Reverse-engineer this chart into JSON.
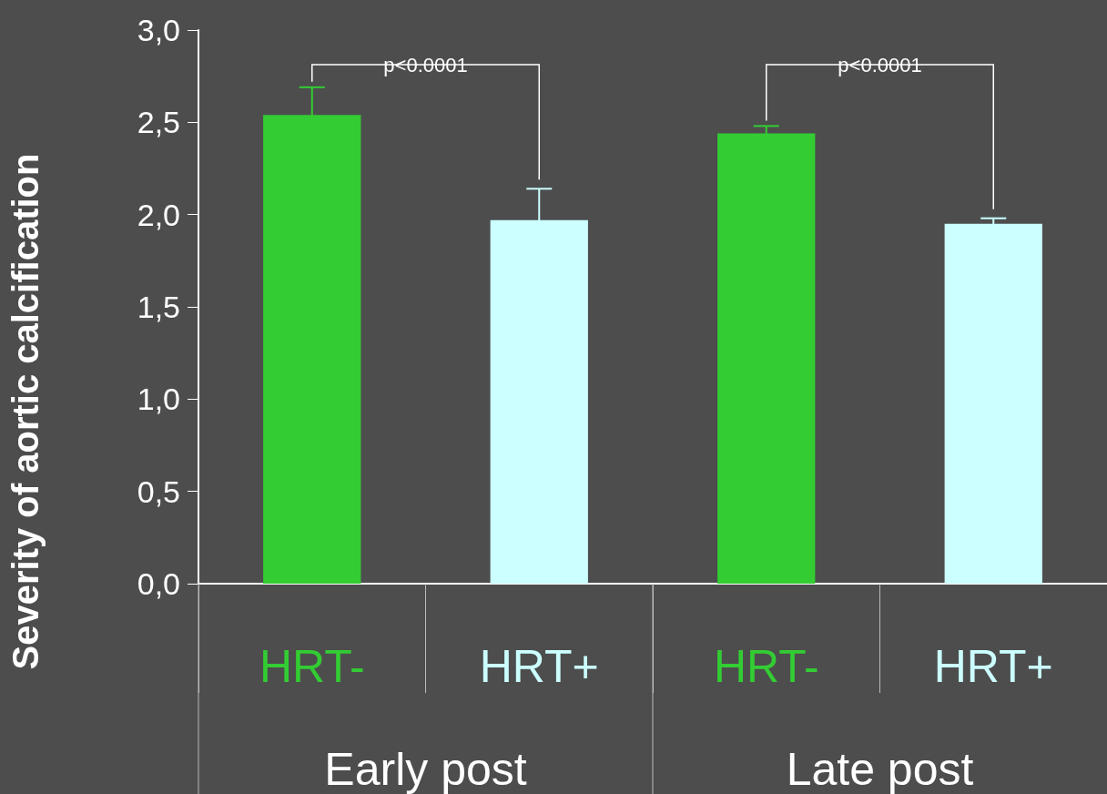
{
  "chart_data": {
    "type": "bar",
    "ylabel": "Severity of aortic calcification",
    "categories": [
      "HRT-",
      "HRT+",
      "HRT-",
      "HRT+"
    ],
    "values": [
      2.54,
      1.97,
      2.44,
      1.95
    ],
    "errors": [
      0.15,
      0.17,
      0.04,
      0.03
    ],
    "colors": [
      "#33cc33",
      "#ccffff",
      "#33cc33",
      "#ccffff"
    ],
    "ylim": [
      0,
      3
    ],
    "yticks": [
      {
        "value": 0,
        "label": "0,0"
      },
      {
        "value": 0.5,
        "label": "0,5"
      },
      {
        "value": 1,
        "label": "1,0"
      },
      {
        "value": 1.5,
        "label": "1,5"
      },
      {
        "value": 2,
        "label": "2,0"
      },
      {
        "value": 2.5,
        "label": "2,5"
      },
      {
        "value": 3,
        "label": "3,0"
      }
    ],
    "grid": false,
    "annotations": [
      "p<0.0001",
      "p<0.0001",
      "Early post",
      "Late post"
    ]
  }
}
